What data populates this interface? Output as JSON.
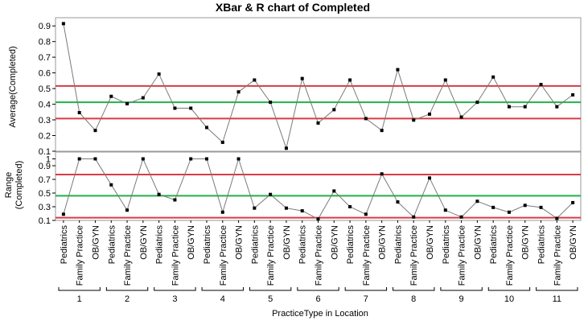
{
  "chart_data": {
    "type": "line",
    "title": "XBar & R chart of Completed",
    "xlabel": "PracticeType in Location",
    "categories": [
      "Pediatrics",
      "Family Practice",
      "OB/GYN",
      "Pediatrics",
      "Family Practice",
      "OB/GYN",
      "Pediatrics",
      "Family Practice",
      "OB/GYN",
      "Pediatrics",
      "Family Practice",
      "OB/GYN",
      "Pediatrics",
      "Family Practice",
      "OB/GYN",
      "Pediatrics",
      "Family Practice",
      "OB/GYN",
      "Pediatrics",
      "Family Practice",
      "OB/GYN",
      "Pediatrics",
      "Family Practice",
      "OB/GYN",
      "Pediatrics",
      "Family Practice",
      "OB/GYN",
      "Pediatrics",
      "Family Practice",
      "OB/GYN",
      "Pediatrics",
      "Family Practice",
      "OB/GYN"
    ],
    "groups": [
      "1",
      "2",
      "3",
      "4",
      "5",
      "6",
      "7",
      "8",
      "9",
      "10",
      "11"
    ],
    "panels": [
      {
        "name": "xbar",
        "ylabel": "Average(Completed)",
        "ylim": [
          0.1,
          1.0
        ],
        "ticks": [
          "0.1",
          "0.2",
          "0.3",
          "0.4",
          "0.5",
          "0.6",
          "0.7",
          "0.8",
          "0.9"
        ],
        "values": [
          0.96,
          0.36,
          0.24,
          0.47,
          0.42,
          0.46,
          0.62,
          0.39,
          0.39,
          0.26,
          0.16,
          0.5,
          0.58,
          0.43,
          0.12,
          0.59,
          0.29,
          0.38,
          0.58,
          0.32,
          0.24,
          0.65,
          0.31,
          0.35,
          0.58,
          0.33,
          0.43,
          0.6,
          0.4,
          0.4,
          0.55,
          0.4,
          0.48
        ],
        "center": 0.43,
        "ucl": 0.54,
        "lcl": 0.32
      },
      {
        "name": "range",
        "ylabel": "Range (Completed)",
        "ylim": [
          0.1,
          1.1
        ],
        "ticks": [
          "0.1",
          "0.3",
          "0.5",
          "0.7",
          "0.9",
          "1"
        ],
        "values": [
          0.19,
          1.0,
          1.0,
          0.62,
          0.25,
          1.0,
          0.48,
          0.4,
          1.0,
          1.0,
          0.22,
          1.0,
          0.28,
          0.48,
          0.28,
          0.24,
          0.12,
          0.53,
          0.3,
          0.19,
          0.78,
          0.37,
          0.15,
          0.72,
          0.25,
          0.15,
          0.38,
          0.29,
          0.22,
          0.32,
          0.29,
          0.13,
          0.36
        ],
        "center": 0.46,
        "ucl": 0.77,
        "lcl": 0.14
      }
    ],
    "colors": {
      "line": "#7a7a7a",
      "marker": "#000000",
      "center": "#22b04a",
      "limit": "#d93a46",
      "frame": "#999999"
    },
    "grid": false
  }
}
